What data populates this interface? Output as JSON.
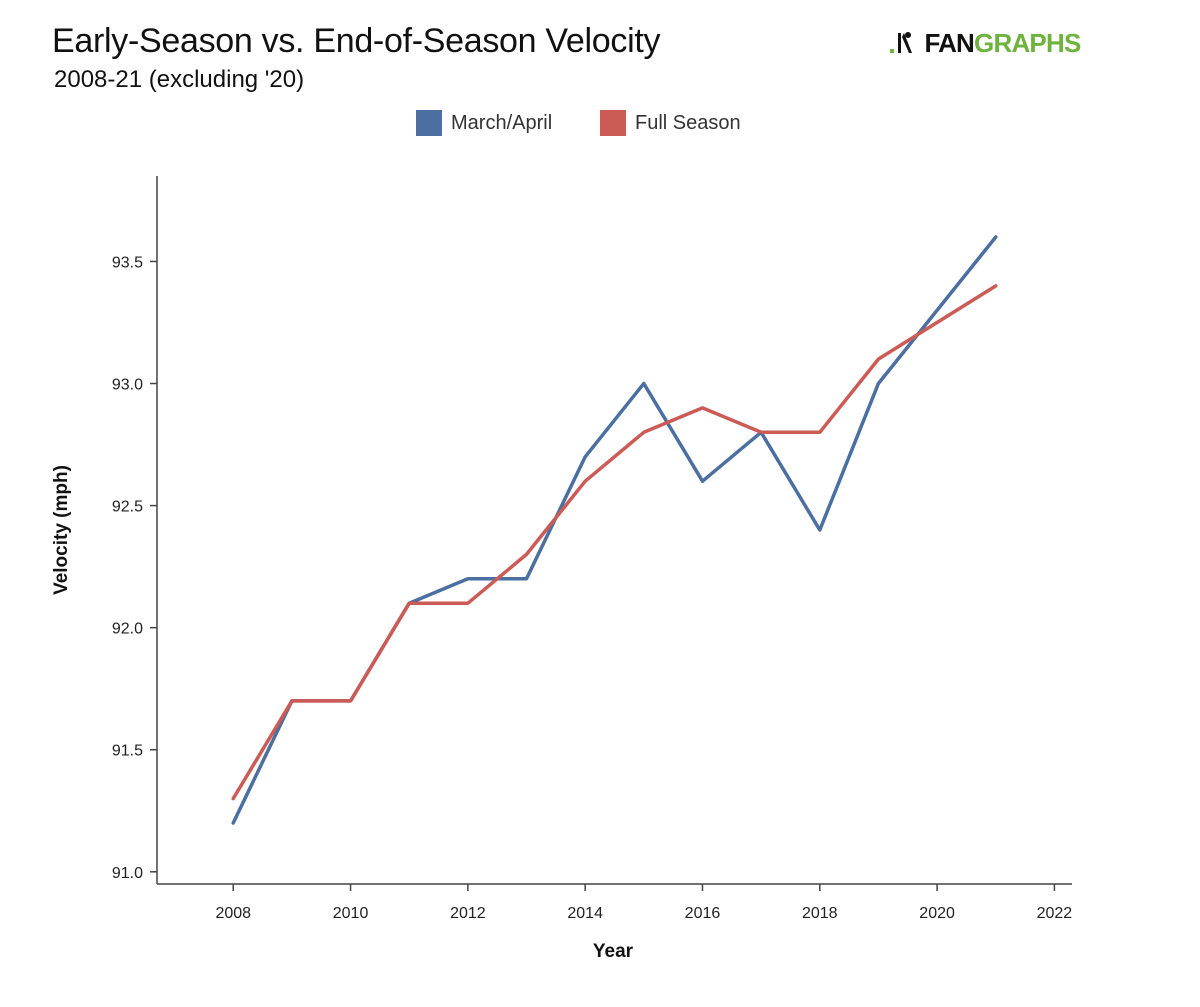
{
  "header": {
    "title": "Early-Season vs. End-of-Season Velocity",
    "subtitle": "2008-21 (excluding '20)"
  },
  "logo": {
    "text_fan": "FAN",
    "text_graphs": "GRAPHS",
    "icon": "fangraphs-batter-icon"
  },
  "chart_data": {
    "type": "line",
    "title": "Early-Season vs. End-of-Season Velocity",
    "subtitle": "2008-21 (excluding '20)",
    "xlabel": "Year",
    "ylabel": "Velocity (mph)",
    "xlim": [
      2006.7,
      2022.3
    ],
    "ylim": [
      90.95,
      93.85
    ],
    "xticks": [
      2008,
      2010,
      2012,
      2014,
      2016,
      2018,
      2020,
      2022
    ],
    "yticks": [
      91.0,
      91.5,
      92.0,
      92.5,
      93.0,
      93.5
    ],
    "grid": false,
    "legend_position": "top-center",
    "series": [
      {
        "name": "March/April",
        "color": "#4a6fa0",
        "x": [
          2008,
          2009,
          2010,
          2011,
          2012,
          2013,
          2014,
          2015,
          2016,
          2017,
          2018,
          2019,
          2021
        ],
        "values": [
          91.2,
          91.7,
          91.7,
          92.1,
          92.2,
          92.2,
          92.7,
          93.0,
          92.6,
          92.8,
          92.4,
          93.0,
          93.6
        ]
      },
      {
        "name": "Full Season",
        "color": "#cc5a55",
        "x": [
          2008,
          2009,
          2010,
          2011,
          2012,
          2013,
          2014,
          2015,
          2016,
          2017,
          2018,
          2019,
          2021
        ],
        "values": [
          91.3,
          91.7,
          91.7,
          92.1,
          92.1,
          92.3,
          92.6,
          92.8,
          92.9,
          92.8,
          92.8,
          93.1,
          93.4
        ]
      }
    ]
  }
}
